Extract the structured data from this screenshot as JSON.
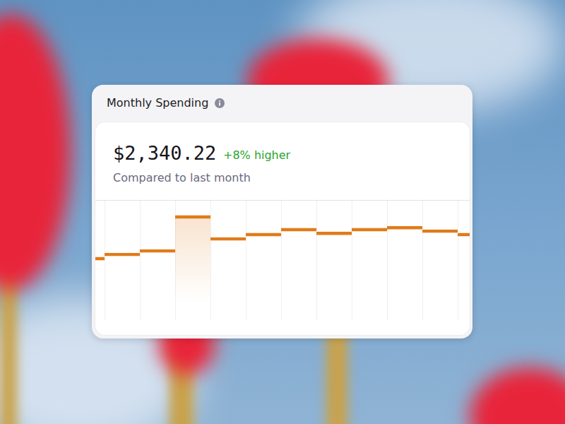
{
  "chart_data": {
    "type": "bar",
    "title": "Monthly Spending",
    "subtitle": "Compared to last month",
    "annotations": [
      "$2,340.22",
      "+8% higher"
    ],
    "categories": [
      null,
      null,
      null,
      null,
      null,
      null,
      null,
      null,
      null,
      null,
      null,
      null
    ],
    "values": [
      52.4,
      55.9,
      58.8,
      87.1,
      68.8,
      72.4,
      76.5,
      73.5,
      76.5,
      78.2,
      75.3,
      72.4
    ],
    "color": "#e07b1a",
    "ylim": [
      0,
      100
    ],
    "yticks": [
      0,
      100
    ],
    "grid": true,
    "tick_labels": false
  }
}
